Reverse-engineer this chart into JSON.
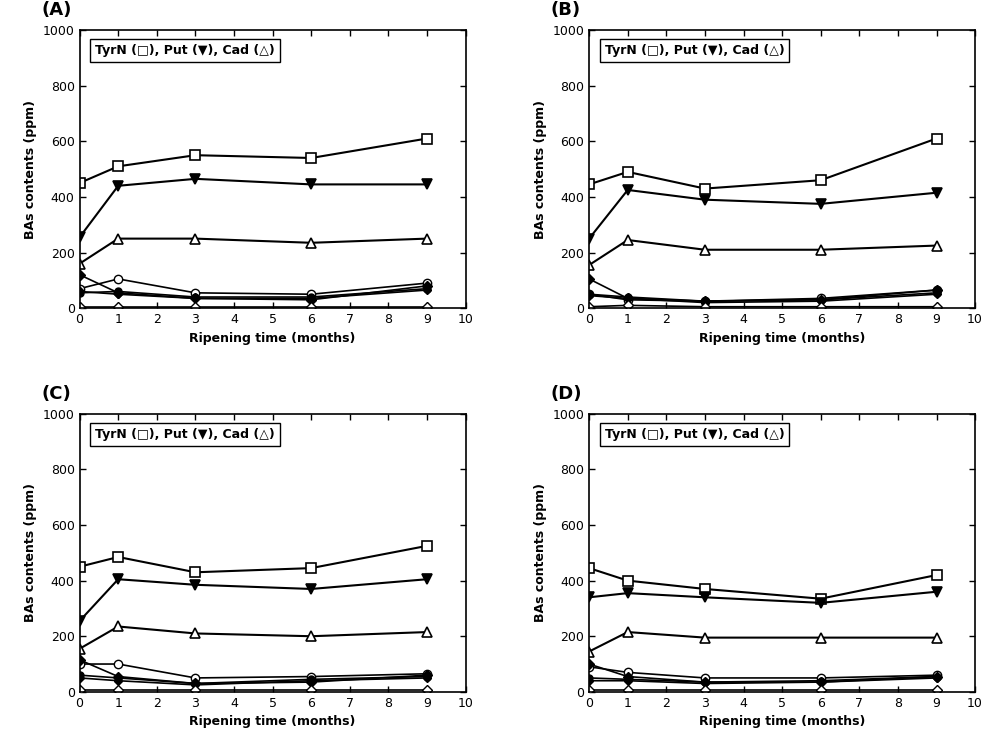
{
  "x": [
    0,
    1,
    3,
    6,
    9
  ],
  "panels": {
    "A": {
      "label": "(A)",
      "TyrN": [
        450,
        510,
        550,
        540,
        610
      ],
      "Put": [
        255,
        440,
        465,
        445,
        445
      ],
      "Cad": [
        160,
        250,
        250,
        235,
        250
      ],
      "s4_ocirc": [
        70,
        105,
        55,
        50,
        90
      ],
      "s5_fdiam": [
        120,
        55,
        35,
        30,
        80
      ],
      "s6_fcirc": [
        55,
        60,
        40,
        40,
        70
      ],
      "s7_smdiam": [
        60,
        50,
        35,
        35,
        65
      ],
      "s8_odiam": [
        5,
        5,
        5,
        5,
        5
      ]
    },
    "B": {
      "label": "(B)",
      "TyrN": [
        445,
        490,
        430,
        460,
        610
      ],
      "Put": [
        250,
        425,
        390,
        375,
        415
      ],
      "Cad": [
        155,
        245,
        210,
        210,
        225
      ],
      "s4_ocirc": [
        50,
        30,
        25,
        35,
        65
      ],
      "s5_fdiam": [
        105,
        35,
        25,
        30,
        65
      ],
      "s6_fcirc": [
        50,
        40,
        25,
        30,
        55
      ],
      "s7_smdiam": [
        45,
        35,
        20,
        25,
        50
      ],
      "s8_odiam": [
        5,
        10,
        5,
        5,
        5
      ]
    },
    "C": {
      "label": "(C)",
      "TyrN": [
        450,
        485,
        430,
        445,
        525
      ],
      "Put": [
        255,
        405,
        385,
        370,
        405
      ],
      "Cad": [
        155,
        235,
        210,
        200,
        215
      ],
      "s4_ocirc": [
        100,
        100,
        50,
        55,
        65
      ],
      "s5_fdiam": [
        115,
        55,
        30,
        35,
        60
      ],
      "s6_fcirc": [
        60,
        50,
        30,
        45,
        55
      ],
      "s7_smdiam": [
        50,
        40,
        25,
        40,
        50
      ],
      "s8_odiam": [
        5,
        5,
        5,
        5,
        5
      ]
    },
    "D": {
      "label": "(D)",
      "TyrN": [
        445,
        400,
        370,
        335,
        420
      ],
      "Put": [
        340,
        355,
        340,
        320,
        360
      ],
      "Cad": [
        145,
        215,
        195,
        195,
        195
      ],
      "s4_ocirc": [
        90,
        70,
        50,
        50,
        60
      ],
      "s5_fdiam": [
        100,
        55,
        35,
        35,
        55
      ],
      "s6_fcirc": [
        50,
        45,
        35,
        40,
        55
      ],
      "s7_smdiam": [
        40,
        40,
        30,
        35,
        50
      ],
      "s8_odiam": [
        5,
        5,
        5,
        5,
        5
      ]
    }
  },
  "xlabel": "Ripening time (months)",
  "ylabel": "BAs contents (ppm)",
  "ylim": [
    0,
    1000
  ],
  "xlim": [
    0,
    10
  ],
  "xticks": [
    0,
    1,
    2,
    3,
    4,
    5,
    6,
    7,
    8,
    9,
    10
  ],
  "yticks": [
    0,
    200,
    400,
    600,
    800,
    1000
  ]
}
